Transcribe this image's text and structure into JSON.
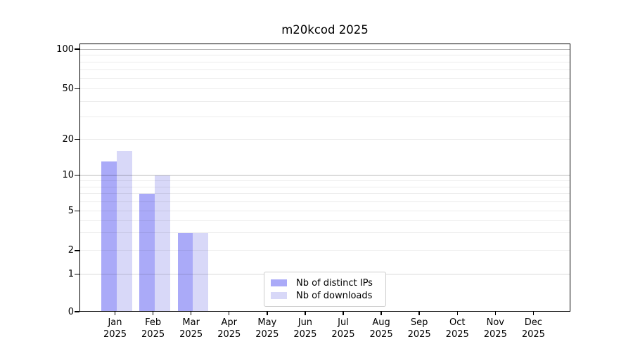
{
  "chart_data": {
    "type": "bar",
    "title": "m20kcod 2025",
    "x_axis": {
      "months": [
        "Jan",
        "Feb",
        "Mar",
        "Apr",
        "May",
        "Jun",
        "Jul",
        "Aug",
        "Sep",
        "Oct",
        "Nov",
        "Dec"
      ],
      "year": "2025"
    },
    "series": [
      {
        "name": "Nb of distinct IPs",
        "color": "#aaaaf8",
        "values": [
          13,
          7,
          3,
          0,
          0,
          0,
          0,
          0,
          0,
          0,
          0,
          0
        ]
      },
      {
        "name": "Nb of downloads",
        "color": "#d8d8f8",
        "values": [
          16,
          10,
          3,
          0,
          0,
          0,
          0,
          0,
          0,
          0,
          0,
          0
        ]
      }
    ],
    "y_axis": {
      "ticks": [
        0,
        1,
        2,
        5,
        10,
        20,
        50,
        100
      ],
      "minor_ticks": [
        3,
        4,
        6,
        7,
        8,
        9,
        30,
        40,
        60,
        70,
        80,
        90
      ],
      "range": [
        0,
        100
      ],
      "scale": "log-like",
      "anchors": [
        [
          0,
          0
        ],
        [
          1,
          0.1402
        ],
        [
          2,
          0.228
        ],
        [
          5,
          0.3761
        ],
        [
          10,
          0.5085
        ],
        [
          20,
          0.6427
        ],
        [
          50,
          0.8304
        ],
        [
          100,
          0.979
        ]
      ]
    },
    "legend": {
      "position": "lower center"
    },
    "grid": true
  },
  "colors": {
    "background": "#ffffff",
    "axis": "#000000",
    "text": "#000000",
    "grid_decade": "rgba(0,0,0,0.28)",
    "grid_unit": "rgba(0,0,0,0.15)",
    "grid_minor": "rgba(0,0,0,0.08)",
    "legend_border": "#cccccc",
    "bar_distinct_ips": "#aaaaf8",
    "bar_downloads": "#d8d8f8"
  }
}
